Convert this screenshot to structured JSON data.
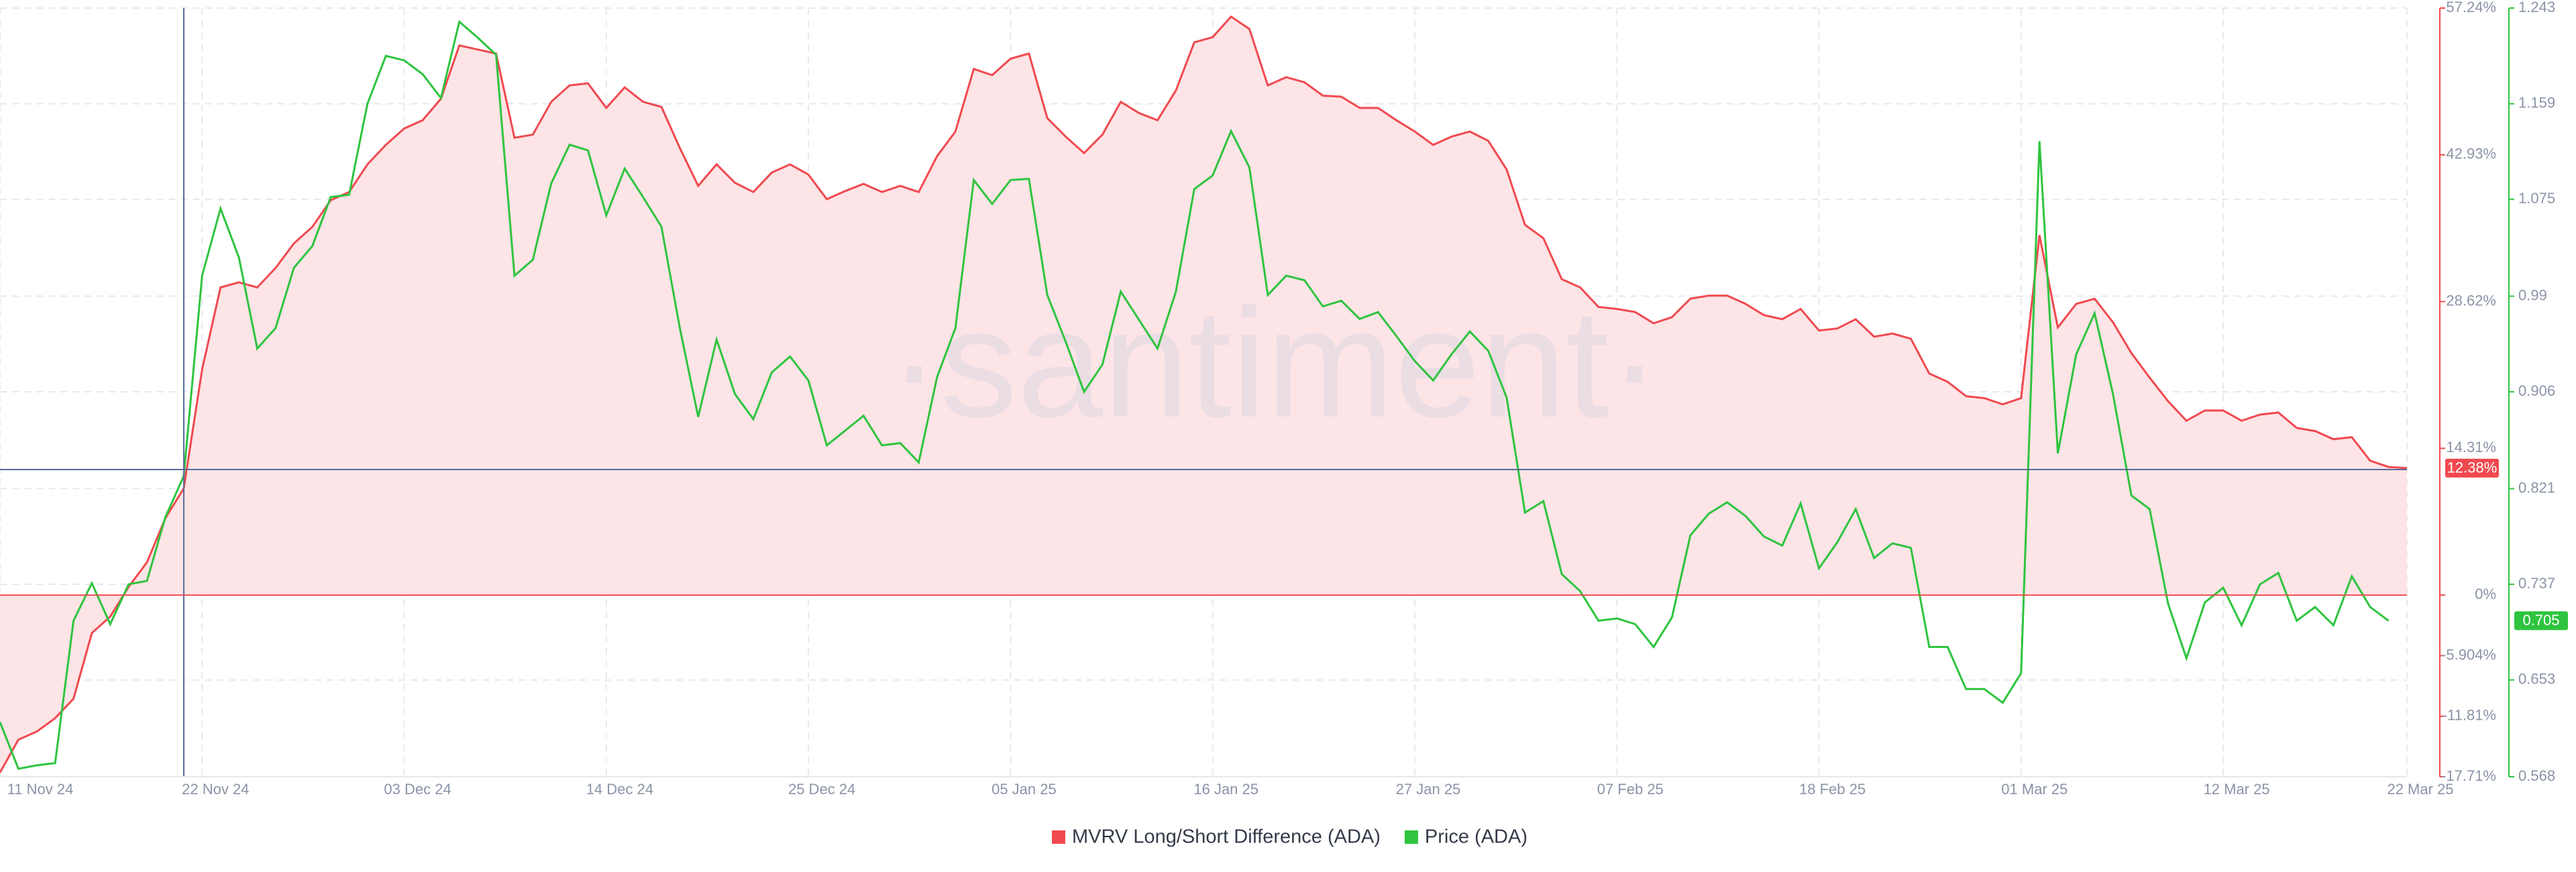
{
  "chart_data": {
    "type": "line",
    "watermark": "·santiment·",
    "categories": [
      "11 Nov 24",
      null,
      null,
      null,
      null,
      null,
      null,
      null,
      null,
      null,
      null,
      "22 Nov 24",
      null,
      null,
      null,
      null,
      null,
      null,
      null,
      null,
      null,
      null,
      "03 Dec 24",
      null,
      null,
      null,
      null,
      null,
      null,
      null,
      null,
      null,
      null,
      "14 Dec 24",
      null,
      null,
      null,
      null,
      null,
      null,
      null,
      null,
      null,
      null,
      "25 Dec 24",
      null,
      null,
      null,
      null,
      null,
      null,
      null,
      null,
      null,
      null,
      "05 Jan 25",
      null,
      null,
      null,
      null,
      null,
      null,
      null,
      null,
      null,
      null,
      "16 Jan 25",
      null,
      null,
      null,
      null,
      null,
      null,
      null,
      null,
      null,
      null,
      "27 Jan 25",
      null,
      null,
      null,
      null,
      null,
      null,
      null,
      null,
      null,
      null,
      "07 Feb 25",
      null,
      null,
      null,
      null,
      null,
      null,
      null,
      null,
      null,
      null,
      "18 Feb 25",
      null,
      null,
      null,
      null,
      null,
      null,
      null,
      null,
      null,
      null,
      "01 Mar 25",
      null,
      null,
      null,
      null,
      null,
      null,
      null,
      null,
      null,
      null,
      "12 Mar 25",
      null,
      null,
      null,
      null,
      null,
      null,
      null,
      null,
      null,
      "22 Mar 25"
    ],
    "ylim": [
      -17.71,
      57.24
    ],
    "yticks": [
      {
        "value": 57.24,
        "label": "57.24%"
      },
      {
        "value": 42.93,
        "label": "42.93%"
      },
      {
        "value": 28.62,
        "label": "28.62%"
      },
      {
        "value": 14.31,
        "label": "14.31%"
      },
      {
        "value": 0,
        "label": "0%"
      },
      {
        "value": -5.904,
        "label": "-5.904%"
      },
      {
        "value": -11.81,
        "label": "-11.81%"
      },
      {
        "value": -17.71,
        "label": "-17.71%"
      }
    ],
    "y2lim": [
      0.568,
      1.243
    ],
    "y2ticks": [
      1.243,
      1.159,
      1.075,
      0.99,
      0.906,
      0.821,
      0.737,
      0.653,
      0.568
    ],
    "grid": true,
    "legend": "bottom",
    "series": [
      {
        "name": "MVRV Long/Short Difference (ADA)",
        "color": "#f0494f",
        "fill": "#fde4e6",
        "axis": "y",
        "current_label": "12.38%",
        "values": [
          -17.3,
          -14.1,
          -13.3,
          -12.0,
          -10.1,
          -3.7,
          -2.1,
          0.8,
          3.2,
          7.5,
          10.4,
          22.0,
          30.0,
          30.5,
          30.0,
          31.9,
          34.3,
          35.9,
          38.5,
          39.3,
          42.0,
          43.9,
          45.5,
          46.3,
          48.4,
          53.6,
          53.2,
          52.8,
          44.6,
          44.9,
          48.1,
          49.7,
          49.9,
          47.5,
          49.5,
          48.1,
          47.6,
          43.6,
          39.9,
          42.0,
          40.2,
          39.3,
          41.2,
          42.0,
          41.0,
          38.6,
          39.4,
          40.1,
          39.3,
          39.9,
          39.3,
          42.8,
          45.2,
          51.3,
          50.7,
          52.3,
          52.8,
          46.5,
          44.7,
          43.1,
          44.9,
          48.1,
          47.0,
          46.3,
          49.2,
          53.9,
          54.4,
          56.4,
          55.2,
          49.7,
          50.5,
          50.0,
          48.7,
          48.6,
          47.5,
          47.5,
          46.3,
          45.2,
          43.9,
          44.7,
          45.2,
          44.3,
          41.5,
          36.1,
          34.8,
          30.8,
          30.0,
          28.1,
          27.9,
          27.6,
          26.5,
          27.1,
          28.9,
          29.2,
          29.2,
          28.4,
          27.3,
          26.9,
          27.9,
          25.8,
          26.0,
          26.9,
          25.2,
          25.5,
          25.0,
          21.6,
          20.8,
          19.4,
          19.2,
          18.6,
          19.2,
          35.1,
          26.1,
          28.4,
          28.9,
          26.6,
          23.6,
          21.2,
          18.9,
          17.0,
          18.0,
          18.0,
          17.0,
          17.6,
          17.8,
          16.3,
          16.0,
          15.2,
          15.4,
          13.1,
          12.5,
          12.38
        ]
      },
      {
        "name": "Price (ADA)",
        "color": "#2ec43f",
        "axis": "y2",
        "current_label": "0.705",
        "values": [
          0.616,
          0.575,
          0.578,
          0.58,
          0.705,
          0.738,
          0.702,
          0.737,
          0.74,
          0.796,
          0.832,
          1.008,
          1.067,
          1.024,
          0.944,
          0.962,
          1.015,
          1.034,
          1.077,
          1.079,
          1.159,
          1.201,
          1.197,
          1.185,
          1.164,
          1.231,
          1.217,
          1.202,
          1.008,
          1.022,
          1.089,
          1.123,
          1.118,
          1.061,
          1.102,
          1.077,
          1.051,
          0.962,
          0.884,
          0.952,
          0.904,
          0.882,
          0.923,
          0.937,
          0.916,
          0.859,
          0.872,
          0.885,
          0.859,
          0.861,
          0.844,
          0.919,
          0.962,
          1.092,
          1.071,
          1.092,
          1.093,
          0.991,
          0.95,
          0.906,
          0.93,
          0.994,
          0.969,
          0.944,
          0.994,
          1.084,
          1.096,
          1.135,
          1.103,
          0.991,
          1.008,
          1.004,
          0.981,
          0.986,
          0.97,
          0.976,
          0.955,
          0.933,
          0.916,
          0.939,
          0.959,
          0.942,
          0.901,
          0.8,
          0.81,
          0.746,
          0.731,
          0.705,
          0.707,
          0.702,
          0.682,
          0.708,
          0.78,
          0.799,
          0.809,
          0.797,
          0.779,
          0.771,
          0.808,
          0.751,
          0.774,
          0.803,
          0.76,
          0.773,
          0.769,
          0.682,
          0.682,
          0.645,
          0.645,
          0.633,
          0.659,
          1.126,
          0.852,
          0.939,
          0.975,
          0.904,
          0.815,
          0.803,
          0.72,
          0.672,
          0.721,
          0.734,
          0.701,
          0.737,
          0.747,
          0.705,
          0.717,
          0.701,
          0.744,
          0.717,
          0.705,
          null
        ]
      }
    ]
  }
}
